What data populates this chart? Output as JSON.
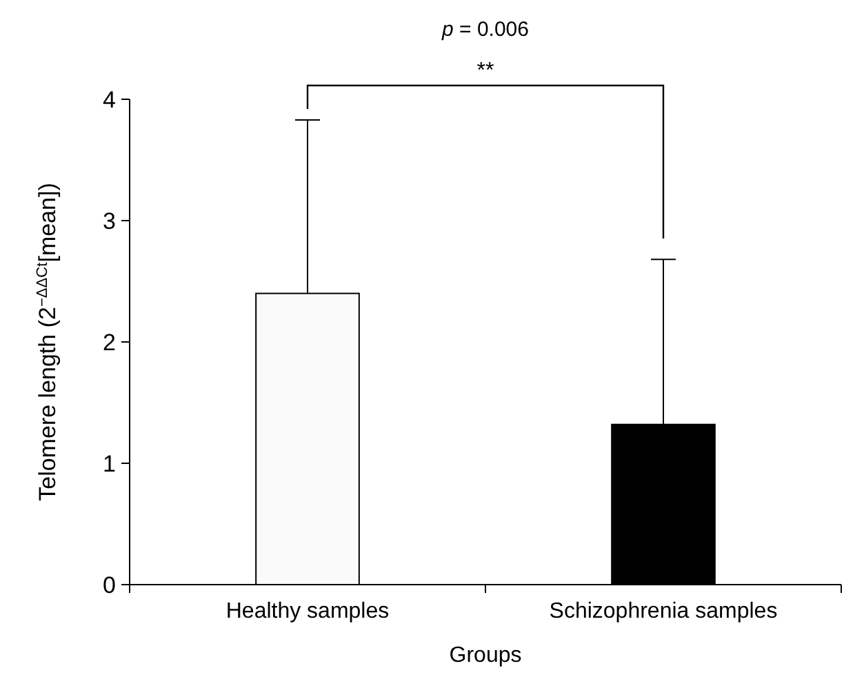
{
  "chart_data": {
    "type": "bar",
    "xlabel": "Groups",
    "ylabel": "Telomere length (2$^{−ΔΔCt}$[mean])",
    "categories": [
      "Healthy samples",
      "Schizophrenia samples"
    ],
    "values": [
      2.4,
      1.32
    ],
    "colors": [
      "#fafafa",
      "#000000"
    ],
    "errors": [
      [
        2.4,
        3.83
      ],
      [
        1.32,
        2.68
      ]
    ],
    "ylim": [
      0,
      4
    ],
    "yticks": [
      0,
      1,
      2,
      3,
      4
    ],
    "annotations": [
      "p = 0.006",
      "**"
    ]
  }
}
